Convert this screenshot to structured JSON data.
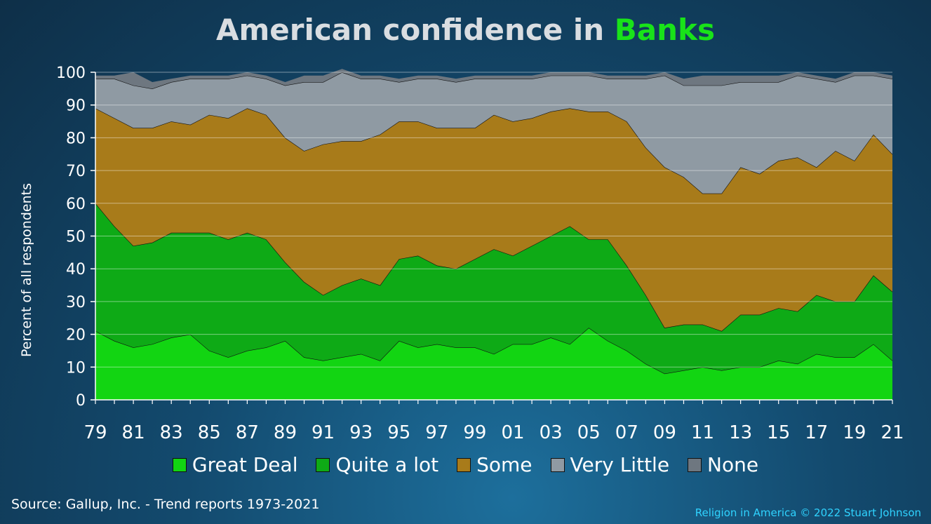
{
  "title": {
    "prefix": "American confidence in ",
    "highlight": "Banks"
  },
  "legend": [
    {
      "label": "Great Deal",
      "color": "#12d512"
    },
    {
      "label": "Quite a lot",
      "color": "#0eaa16"
    },
    {
      "label": "Some",
      "color": "#a87b1a"
    },
    {
      "label": "Very Little",
      "color": "#8f9aa3"
    },
    {
      "label": "None",
      "color": "#6e7780"
    }
  ],
  "source": "Source: Gallup, Inc. - Trend reports 1973-2021",
  "credit": "Religion in America © 2022 Stuart Johnson",
  "chart_data": {
    "type": "area",
    "stacked": true,
    "ylabel": "Percent of all respondents",
    "ylim": [
      0,
      100
    ],
    "yticks": [
      0,
      10,
      20,
      30,
      40,
      50,
      60,
      70,
      80,
      90,
      100
    ],
    "grid": true,
    "legend_position": "bottom",
    "x": [
      1979,
      1980,
      1981,
      1982,
      1983,
      1984,
      1985,
      1986,
      1987,
      1988,
      1989,
      1990,
      1991,
      1992,
      1993,
      1994,
      1995,
      1996,
      1997,
      1998,
      1999,
      2000,
      2001,
      2002,
      2003,
      2004,
      2005,
      2006,
      2007,
      2008,
      2009,
      2010,
      2011,
      2012,
      2013,
      2014,
      2015,
      2016,
      2017,
      2018,
      2019,
      2020,
      2021
    ],
    "xtick_labels": [
      {
        "x": 1979,
        "label": "79"
      },
      {
        "x": 1981,
        "label": "81"
      },
      {
        "x": 1983,
        "label": "83"
      },
      {
        "x": 1985,
        "label": "85"
      },
      {
        "x": 1987,
        "label": "87"
      },
      {
        "x": 1989,
        "label": "89"
      },
      {
        "x": 1991,
        "label": "91"
      },
      {
        "x": 1993,
        "label": "93"
      },
      {
        "x": 1995,
        "label": "95"
      },
      {
        "x": 1997,
        "label": "97"
      },
      {
        "x": 1999,
        "label": "99"
      },
      {
        "x": 2001,
        "label": "01"
      },
      {
        "x": 2003,
        "label": "03"
      },
      {
        "x": 2005,
        "label": "05"
      },
      {
        "x": 2007,
        "label": "07"
      },
      {
        "x": 2009,
        "label": "09"
      },
      {
        "x": 2011,
        "label": "11"
      },
      {
        "x": 2013,
        "label": "13"
      },
      {
        "x": 2015,
        "label": "15"
      },
      {
        "x": 2017,
        "label": "17"
      },
      {
        "x": 2019,
        "label": "19"
      },
      {
        "x": 2021,
        "label": "21"
      }
    ],
    "series": [
      {
        "name": "Great Deal",
        "color": "#12d512",
        "values": [
          21,
          18,
          16,
          17,
          19,
          20,
          15,
          13,
          15,
          16,
          18,
          13,
          12,
          13,
          14,
          12,
          18,
          16,
          17,
          16,
          16,
          14,
          17,
          17,
          19,
          17,
          22,
          18,
          15,
          11,
          8,
          9,
          10,
          9,
          10,
          10,
          12,
          11,
          14,
          13,
          13,
          17,
          12
        ]
      },
      {
        "name": "Quite a lot",
        "color": "#0eaa16",
        "values": [
          39,
          35,
          31,
          31,
          32,
          31,
          36,
          36,
          36,
          33,
          24,
          23,
          20,
          22,
          23,
          23,
          25,
          28,
          24,
          24,
          27,
          32,
          27,
          30,
          31,
          36,
          27,
          31,
          26,
          21,
          14,
          14,
          13,
          12,
          16,
          16,
          16,
          16,
          18,
          17,
          17,
          21,
          21
        ]
      },
      {
        "name": "Some",
        "color": "#a87b1a",
        "values": [
          29,
          33,
          36,
          35,
          34,
          33,
          36,
          37,
          38,
          38,
          38,
          40,
          46,
          44,
          42,
          46,
          42,
          41,
          42,
          43,
          40,
          41,
          41,
          39,
          38,
          36,
          39,
          39,
          44,
          45,
          49,
          45,
          40,
          42,
          45,
          43,
          45,
          47,
          39,
          46,
          43,
          43,
          42
        ]
      },
      {
        "name": "Very Little",
        "color": "#8f9aa3",
        "values": [
          9,
          12,
          13,
          12,
          12,
          14,
          11,
          12,
          10,
          11,
          16,
          21,
          19,
          21,
          19,
          17,
          12,
          13,
          15,
          14,
          15,
          11,
          13,
          12,
          11,
          10,
          11,
          10,
          13,
          21,
          28,
          28,
          33,
          33,
          26,
          28,
          24,
          25,
          27,
          21,
          26,
          18,
          23
        ]
      },
      {
        "name": "None",
        "color": "#6e7780",
        "values": [
          1,
          1,
          4,
          2,
          1,
          1,
          1,
          1,
          1,
          1,
          1,
          2,
          2,
          1,
          1,
          1,
          1,
          1,
          1,
          1,
          1,
          1,
          1,
          1,
          1,
          1,
          1,
          1,
          1,
          1,
          1,
          2,
          3,
          3,
          2,
          2,
          2,
          1,
          1,
          1,
          1,
          1,
          1
        ]
      }
    ]
  }
}
